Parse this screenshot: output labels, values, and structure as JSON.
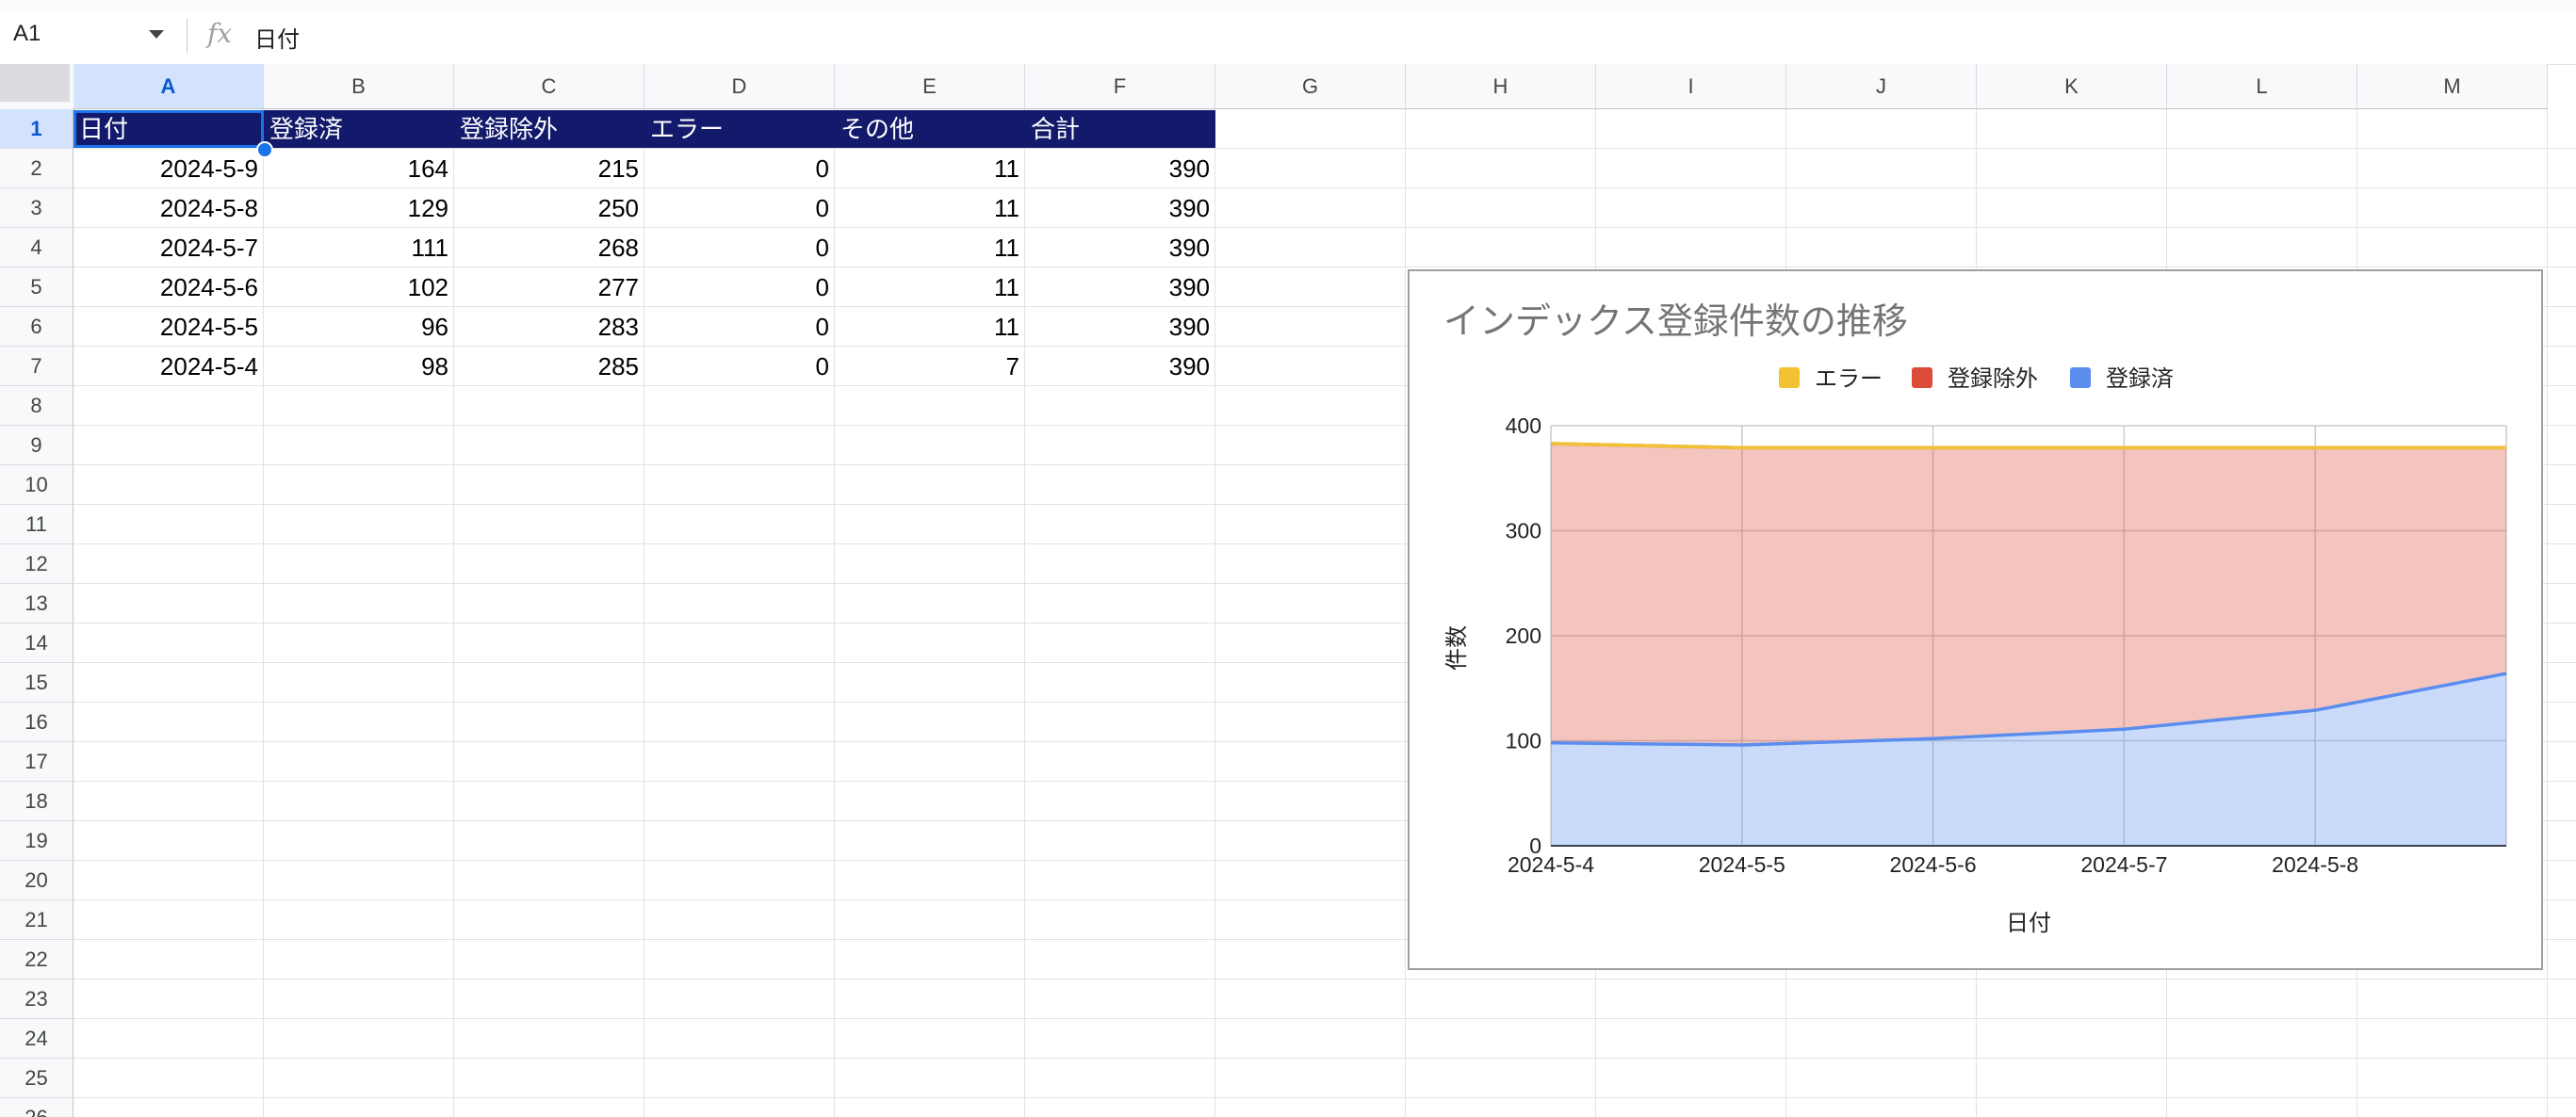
{
  "formula_bar": {
    "name_box": "A1",
    "fx": "fx",
    "value": "日付"
  },
  "columns": [
    "A",
    "B",
    "C",
    "D",
    "E",
    "F",
    "G",
    "H",
    "I",
    "J",
    "K",
    "L",
    "M"
  ],
  "rows": [
    "1",
    "2",
    "3",
    "4",
    "5",
    "6",
    "7",
    "8",
    "9",
    "10",
    "11",
    "12",
    "13",
    "14",
    "15",
    "16",
    "17",
    "18",
    "19",
    "20",
    "21",
    "22",
    "23",
    "24",
    "25",
    "26"
  ],
  "table": {
    "headers": [
      "日付",
      "登録済",
      "登録除外",
      "エラー",
      "その他",
      "合計"
    ],
    "rows": [
      [
        "2024-5-9",
        "164",
        "215",
        "0",
        "11",
        "390"
      ],
      [
        "2024-5-8",
        "129",
        "250",
        "0",
        "11",
        "390"
      ],
      [
        "2024-5-7",
        "111",
        "268",
        "0",
        "11",
        "390"
      ],
      [
        "2024-5-6",
        "102",
        "277",
        "0",
        "11",
        "390"
      ],
      [
        "2024-5-5",
        "96",
        "283",
        "0",
        "11",
        "390"
      ],
      [
        "2024-5-4",
        "98",
        "285",
        "0",
        "7",
        "390"
      ]
    ]
  },
  "colors": {
    "header_bg": "#131a6b",
    "selection": "#1a73e8",
    "series_error": "#f1c232",
    "series_excluded": "#dd4b39",
    "series_registered": "#5b8def"
  },
  "chart_data": {
    "type": "area",
    "stacked": true,
    "title": "インデックス登録件数の推移",
    "xlabel": "日付",
    "ylabel": "件数",
    "x": [
      "2024-5-4",
      "2024-5-5",
      "2024-5-6",
      "2024-5-7",
      "2024-5-8",
      "2024-5-9"
    ],
    "x_tick_labels": [
      "2024-5-4",
      "2024-5-5",
      "2024-5-6",
      "2024-5-7",
      "2024-5-8"
    ],
    "ylim": [
      0,
      400
    ],
    "y_ticks": [
      "0",
      "100",
      "200",
      "300",
      "400"
    ],
    "grid": true,
    "legend_position": "top",
    "series": [
      {
        "name": "エラー",
        "values": [
          0,
          0,
          0,
          0,
          0,
          0
        ],
        "color": "#f1c232"
      },
      {
        "name": "登録除外",
        "values": [
          285,
          283,
          277,
          268,
          250,
          215
        ],
        "color": "#dd4b39"
      },
      {
        "name": "登録済",
        "values": [
          98,
          96,
          102,
          111,
          129,
          164
        ],
        "color": "#5b8def"
      }
    ]
  }
}
